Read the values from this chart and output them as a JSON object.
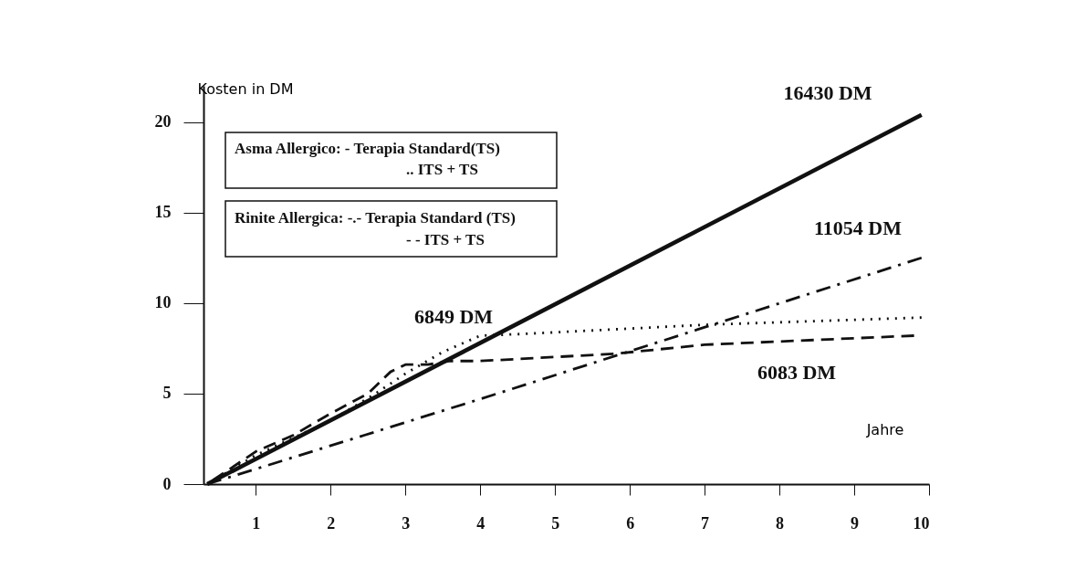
{
  "chart_data": {
    "type": "line",
    "xlabel": "Jahre",
    "ylabel": "Kosten in DM",
    "xlim": [
      0.3,
      10
    ],
    "ylim": [
      0,
      22
    ],
    "xticks": [
      1,
      2,
      3,
      4,
      5,
      6,
      7,
      8,
      9,
      10
    ],
    "yticks": [
      0,
      5,
      10,
      15,
      20
    ],
    "grid": false,
    "series": [
      {
        "color": "#111111",
        "line_style": "solid",
        "x": [
          0.35,
          9.9
        ],
        "values": [
          0,
          20.4
        ]
      },
      {
        "color": "#111111",
        "line_style": "dotted",
        "x": [
          0.35,
          1,
          2,
          2.6,
          3,
          3.5,
          4,
          4.6,
          7,
          9.9
        ],
        "values": [
          0,
          1.6,
          3.5,
          5.0,
          6.1,
          7.3,
          8.2,
          8.3,
          8.8,
          9.2
        ]
      },
      {
        "color": "#111111",
        "line_style": "dashdot",
        "x": [
          0.35,
          2.45,
          4,
          4.76,
          9.9
        ],
        "values": [
          0,
          2.7,
          4.7,
          5.7,
          12.5
        ]
      },
      {
        "color": "#111111",
        "line_style": "dashed",
        "x": [
          0.35,
          1,
          1.5,
          2,
          2.5,
          2.8,
          3,
          3.3,
          3.6,
          4,
          5.8,
          7,
          9.8
        ],
        "values": [
          0,
          1.8,
          2.7,
          3.9,
          5.0,
          6.2,
          6.6,
          6.6,
          6.8,
          6.8,
          7.2,
          7.7,
          8.2
        ]
      }
    ],
    "annotations": [
      "16430 DM",
      "11054 DM",
      "6849 DM",
      "6083 DM",
      "Asma  Allergico:   -   Terapia Standard(TS)",
      ".. ITS + TS",
      "Rinite Allergica:  -.-  Terapia Standard (TS)",
      "- -  ITS + TS"
    ]
  }
}
